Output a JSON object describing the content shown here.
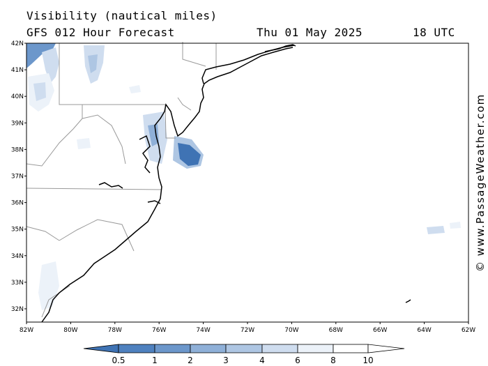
{
  "header": {
    "title": "Visibility (nautical miles)",
    "subtitle": "GFS 012 Hour Forecast",
    "date": "Thu 01 May 2025",
    "time": "18 UTC"
  },
  "credit": "© www.PassageWeather.com",
  "map": {
    "lat_labels": [
      "42N",
      "41N",
      "40N",
      "39N",
      "38N",
      "37N",
      "36N",
      "35N",
      "34N",
      "33N",
      "32N"
    ],
    "lon_labels": [
      "82W",
      "80W",
      "78W",
      "76W",
      "74W",
      "72W",
      "70W",
      "68W",
      "66W",
      "64W",
      "62W"
    ],
    "lat_range": [
      31.5,
      42
    ],
    "lon_range": [
      -82,
      -62
    ],
    "land_color": "#ffffff",
    "coast_color": "#000000",
    "border_color": "#999999"
  },
  "colorbar": {
    "labels": [
      "0.5",
      "1",
      "2",
      "3",
      "4",
      "6",
      "8",
      "10"
    ],
    "colors": [
      "#3f73b4",
      "#4f81bf",
      "#6c97cb",
      "#8fb0d8",
      "#aec6e3",
      "#cfddef",
      "#ecf2f9",
      "#ffffff"
    ]
  }
}
